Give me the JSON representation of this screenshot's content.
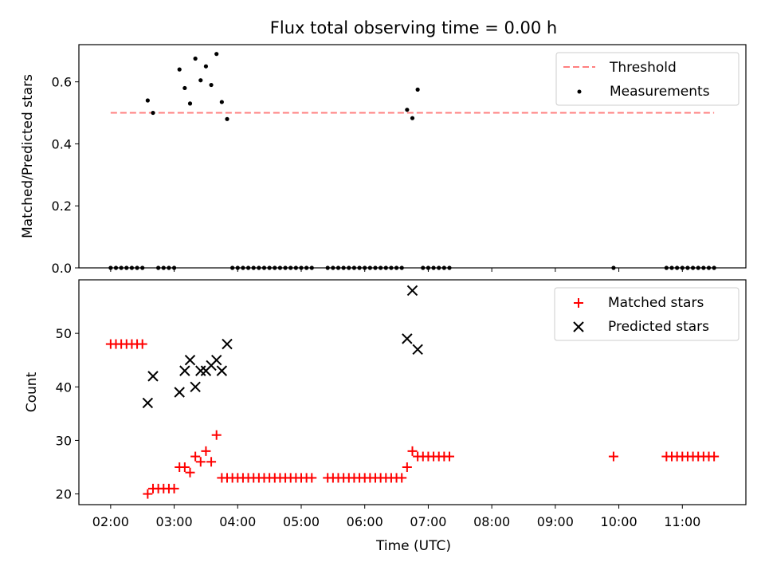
{
  "chart_data": [
    {
      "type": "scatter",
      "title": "Flux total observing time = 0.00 h",
      "ylabel": "Matched/Predicted stars",
      "ylim": [
        0,
        0.72
      ],
      "yticks": [
        0.0,
        0.2,
        0.4,
        0.6
      ],
      "ytick_labels": [
        "0.0",
        "0.2",
        "0.4",
        "0.6"
      ],
      "xlim": [
        "01:30",
        "12:00"
      ],
      "grid": false,
      "legend": "top-right",
      "threshold": {
        "name": "Threshold",
        "y": 0.5,
        "x": [
          "02:00",
          "11:30"
        ],
        "color": "#ff7f7f"
      },
      "series": [
        {
          "name": "Measurements",
          "color": "#000000",
          "points": [
            {
              "x": "02:00",
              "y": 0.0
            },
            {
              "x": "02:05",
              "y": 0.0
            },
            {
              "x": "02:10",
              "y": 0.0
            },
            {
              "x": "02:15",
              "y": 0.0
            },
            {
              "x": "02:20",
              "y": 0.0
            },
            {
              "x": "02:25",
              "y": 0.0
            },
            {
              "x": "02:30",
              "y": 0.0
            },
            {
              "x": "02:35",
              "y": 0.54
            },
            {
              "x": "02:40",
              "y": 0.5
            },
            {
              "x": "02:45",
              "y": 0.0
            },
            {
              "x": "02:50",
              "y": 0.0
            },
            {
              "x": "02:55",
              "y": 0.0
            },
            {
              "x": "03:00",
              "y": 0.0
            },
            {
              "x": "03:05",
              "y": 0.64
            },
            {
              "x": "03:10",
              "y": 0.58
            },
            {
              "x": "03:15",
              "y": 0.53
            },
            {
              "x": "03:20",
              "y": 0.675
            },
            {
              "x": "03:25",
              "y": 0.605
            },
            {
              "x": "03:30",
              "y": 0.65
            },
            {
              "x": "03:35",
              "y": 0.59
            },
            {
              "x": "03:40",
              "y": 0.69
            },
            {
              "x": "03:45",
              "y": 0.535
            },
            {
              "x": "03:50",
              "y": 0.48
            },
            {
              "x": "03:55",
              "y": 0.0
            },
            {
              "x": "04:00",
              "y": 0.0
            },
            {
              "x": "04:05",
              "y": 0.0
            },
            {
              "x": "04:10",
              "y": 0.0
            },
            {
              "x": "04:15",
              "y": 0.0
            },
            {
              "x": "04:20",
              "y": 0.0
            },
            {
              "x": "04:25",
              "y": 0.0
            },
            {
              "x": "04:30",
              "y": 0.0
            },
            {
              "x": "04:35",
              "y": 0.0
            },
            {
              "x": "04:40",
              "y": 0.0
            },
            {
              "x": "04:45",
              "y": 0.0
            },
            {
              "x": "04:50",
              "y": 0.0
            },
            {
              "x": "04:55",
              "y": 0.0
            },
            {
              "x": "05:00",
              "y": 0.0
            },
            {
              "x": "05:05",
              "y": 0.0
            },
            {
              "x": "05:10",
              "y": 0.0
            },
            {
              "x": "05:25",
              "y": 0.0
            },
            {
              "x": "05:30",
              "y": 0.0
            },
            {
              "x": "05:35",
              "y": 0.0
            },
            {
              "x": "05:40",
              "y": 0.0
            },
            {
              "x": "05:45",
              "y": 0.0
            },
            {
              "x": "05:50",
              "y": 0.0
            },
            {
              "x": "05:55",
              "y": 0.0
            },
            {
              "x": "06:00",
              "y": 0.0
            },
            {
              "x": "06:05",
              "y": 0.0
            },
            {
              "x": "06:10",
              "y": 0.0
            },
            {
              "x": "06:15",
              "y": 0.0
            },
            {
              "x": "06:20",
              "y": 0.0
            },
            {
              "x": "06:25",
              "y": 0.0
            },
            {
              "x": "06:30",
              "y": 0.0
            },
            {
              "x": "06:35",
              "y": 0.0
            },
            {
              "x": "06:40",
              "y": 0.51
            },
            {
              "x": "06:45",
              "y": 0.483
            },
            {
              "x": "06:50",
              "y": 0.575
            },
            {
              "x": "06:55",
              "y": 0.0
            },
            {
              "x": "07:00",
              "y": 0.0
            },
            {
              "x": "07:05",
              "y": 0.0
            },
            {
              "x": "07:10",
              "y": 0.0
            },
            {
              "x": "07:15",
              "y": 0.0
            },
            {
              "x": "07:20",
              "y": 0.0
            },
            {
              "x": "09:55",
              "y": 0.0
            },
            {
              "x": "10:45",
              "y": 0.0
            },
            {
              "x": "10:50",
              "y": 0.0
            },
            {
              "x": "10:55",
              "y": 0.0
            },
            {
              "x": "11:00",
              "y": 0.0
            },
            {
              "x": "11:05",
              "y": 0.0
            },
            {
              "x": "11:10",
              "y": 0.0
            },
            {
              "x": "11:15",
              "y": 0.0
            },
            {
              "x": "11:20",
              "y": 0.0
            },
            {
              "x": "11:25",
              "y": 0.0
            },
            {
              "x": "11:30",
              "y": 0.0
            }
          ]
        }
      ]
    },
    {
      "type": "scatter",
      "xlabel": "Time (UTC)",
      "ylabel": "Count",
      "ylim": [
        18,
        60
      ],
      "yticks": [
        20,
        30,
        40,
        50
      ],
      "ytick_labels": [
        "20",
        "30",
        "40",
        "50"
      ],
      "xlim": [
        "01:30",
        "12:00"
      ],
      "xticks": [
        "02:00",
        "03:00",
        "04:00",
        "05:00",
        "06:00",
        "07:00",
        "08:00",
        "09:00",
        "10:00",
        "11:00"
      ],
      "xtick_labels": [
        "02:00",
        "03:00",
        "04:00",
        "05:00",
        "06:00",
        "07:00",
        "08:00",
        "09:00",
        "10:00",
        "11:00"
      ],
      "grid": false,
      "legend": "top-right",
      "series": [
        {
          "name": "Matched stars",
          "marker": "plus",
          "color": "#ff0000",
          "points": [
            {
              "x": "02:00",
              "y": 48
            },
            {
              "x": "02:05",
              "y": 48
            },
            {
              "x": "02:10",
              "y": 48
            },
            {
              "x": "02:15",
              "y": 48
            },
            {
              "x": "02:20",
              "y": 48
            },
            {
              "x": "02:25",
              "y": 48
            },
            {
              "x": "02:30",
              "y": 48
            },
            {
              "x": "02:35",
              "y": 20
            },
            {
              "x": "02:40",
              "y": 21
            },
            {
              "x": "02:45",
              "y": 21
            },
            {
              "x": "02:50",
              "y": 21
            },
            {
              "x": "02:55",
              "y": 21
            },
            {
              "x": "03:00",
              "y": 21
            },
            {
              "x": "03:05",
              "y": 25
            },
            {
              "x": "03:10",
              "y": 25
            },
            {
              "x": "03:15",
              "y": 24
            },
            {
              "x": "03:20",
              "y": 27
            },
            {
              "x": "03:25",
              "y": 26
            },
            {
              "x": "03:30",
              "y": 28
            },
            {
              "x": "03:35",
              "y": 26
            },
            {
              "x": "03:40",
              "y": 31
            },
            {
              "x": "03:45",
              "y": 23
            },
            {
              "x": "03:50",
              "y": 23
            },
            {
              "x": "03:55",
              "y": 23
            },
            {
              "x": "04:00",
              "y": 23
            },
            {
              "x": "04:05",
              "y": 23
            },
            {
              "x": "04:10",
              "y": 23
            },
            {
              "x": "04:15",
              "y": 23
            },
            {
              "x": "04:20",
              "y": 23
            },
            {
              "x": "04:25",
              "y": 23
            },
            {
              "x": "04:30",
              "y": 23
            },
            {
              "x": "04:35",
              "y": 23
            },
            {
              "x": "04:40",
              "y": 23
            },
            {
              "x": "04:45",
              "y": 23
            },
            {
              "x": "04:50",
              "y": 23
            },
            {
              "x": "04:55",
              "y": 23
            },
            {
              "x": "05:00",
              "y": 23
            },
            {
              "x": "05:05",
              "y": 23
            },
            {
              "x": "05:10",
              "y": 23
            },
            {
              "x": "05:25",
              "y": 23
            },
            {
              "x": "05:30",
              "y": 23
            },
            {
              "x": "05:35",
              "y": 23
            },
            {
              "x": "05:40",
              "y": 23
            },
            {
              "x": "05:45",
              "y": 23
            },
            {
              "x": "05:50",
              "y": 23
            },
            {
              "x": "05:55",
              "y": 23
            },
            {
              "x": "06:00",
              "y": 23
            },
            {
              "x": "06:05",
              "y": 23
            },
            {
              "x": "06:10",
              "y": 23
            },
            {
              "x": "06:15",
              "y": 23
            },
            {
              "x": "06:20",
              "y": 23
            },
            {
              "x": "06:25",
              "y": 23
            },
            {
              "x": "06:30",
              "y": 23
            },
            {
              "x": "06:35",
              "y": 23
            },
            {
              "x": "06:40",
              "y": 25
            },
            {
              "x": "06:45",
              "y": 28
            },
            {
              "x": "06:50",
              "y": 27
            },
            {
              "x": "06:55",
              "y": 27
            },
            {
              "x": "07:00",
              "y": 27
            },
            {
              "x": "07:05",
              "y": 27
            },
            {
              "x": "07:10",
              "y": 27
            },
            {
              "x": "07:15",
              "y": 27
            },
            {
              "x": "07:20",
              "y": 27
            },
            {
              "x": "09:55",
              "y": 27
            },
            {
              "x": "10:45",
              "y": 27
            },
            {
              "x": "10:50",
              "y": 27
            },
            {
              "x": "10:55",
              "y": 27
            },
            {
              "x": "11:00",
              "y": 27
            },
            {
              "x": "11:05",
              "y": 27
            },
            {
              "x": "11:10",
              "y": 27
            },
            {
              "x": "11:15",
              "y": 27
            },
            {
              "x": "11:20",
              "y": 27
            },
            {
              "x": "11:25",
              "y": 27
            },
            {
              "x": "11:30",
              "y": 27
            }
          ]
        },
        {
          "name": "Predicted stars",
          "marker": "x",
          "color": "#000000",
          "points": [
            {
              "x": "02:35",
              "y": 37
            },
            {
              "x": "02:40",
              "y": 42
            },
            {
              "x": "03:05",
              "y": 39
            },
            {
              "x": "03:10",
              "y": 43
            },
            {
              "x": "03:15",
              "y": 45
            },
            {
              "x": "03:20",
              "y": 40
            },
            {
              "x": "03:25",
              "y": 43
            },
            {
              "x": "03:30",
              "y": 43
            },
            {
              "x": "03:35",
              "y": 44
            },
            {
              "x": "03:40",
              "y": 45
            },
            {
              "x": "03:45",
              "y": 43
            },
            {
              "x": "03:50",
              "y": 48
            },
            {
              "x": "06:40",
              "y": 49
            },
            {
              "x": "06:45",
              "y": 58
            },
            {
              "x": "06:50",
              "y": 47
            }
          ]
        }
      ]
    }
  ]
}
